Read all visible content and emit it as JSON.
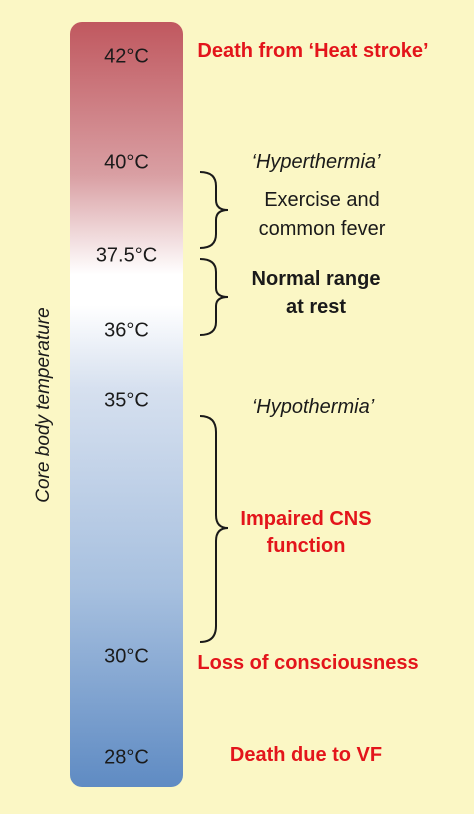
{
  "axis_label": "Core body temperature",
  "ticks": {
    "t42": "42°C",
    "t40": "40°C",
    "t375": "37.5°C",
    "t36": "36°C",
    "t35": "35°C",
    "t30": "30°C",
    "t28": "28°C"
  },
  "labels": {
    "heat_stroke": "Death from ‘Heat stroke’",
    "hyperthermia": "‘Hyperthermia’",
    "exercise_line1": "Exercise and",
    "exercise_line2": "common fever",
    "normal_line1": "Normal range",
    "normal_line2": "at rest",
    "hypothermia": "‘Hypothermia’",
    "cns_line1": "Impaired CNS",
    "cns_line2": "function",
    "consciousness": "Loss of consciousness",
    "vf": "Death due to VF"
  },
  "colors": {
    "background": "#FBF7C5",
    "hot": "#C0585F",
    "neutral": "#FFFFFF",
    "cold": "#5F8BC3",
    "warning_text": "#E3151B"
  }
}
